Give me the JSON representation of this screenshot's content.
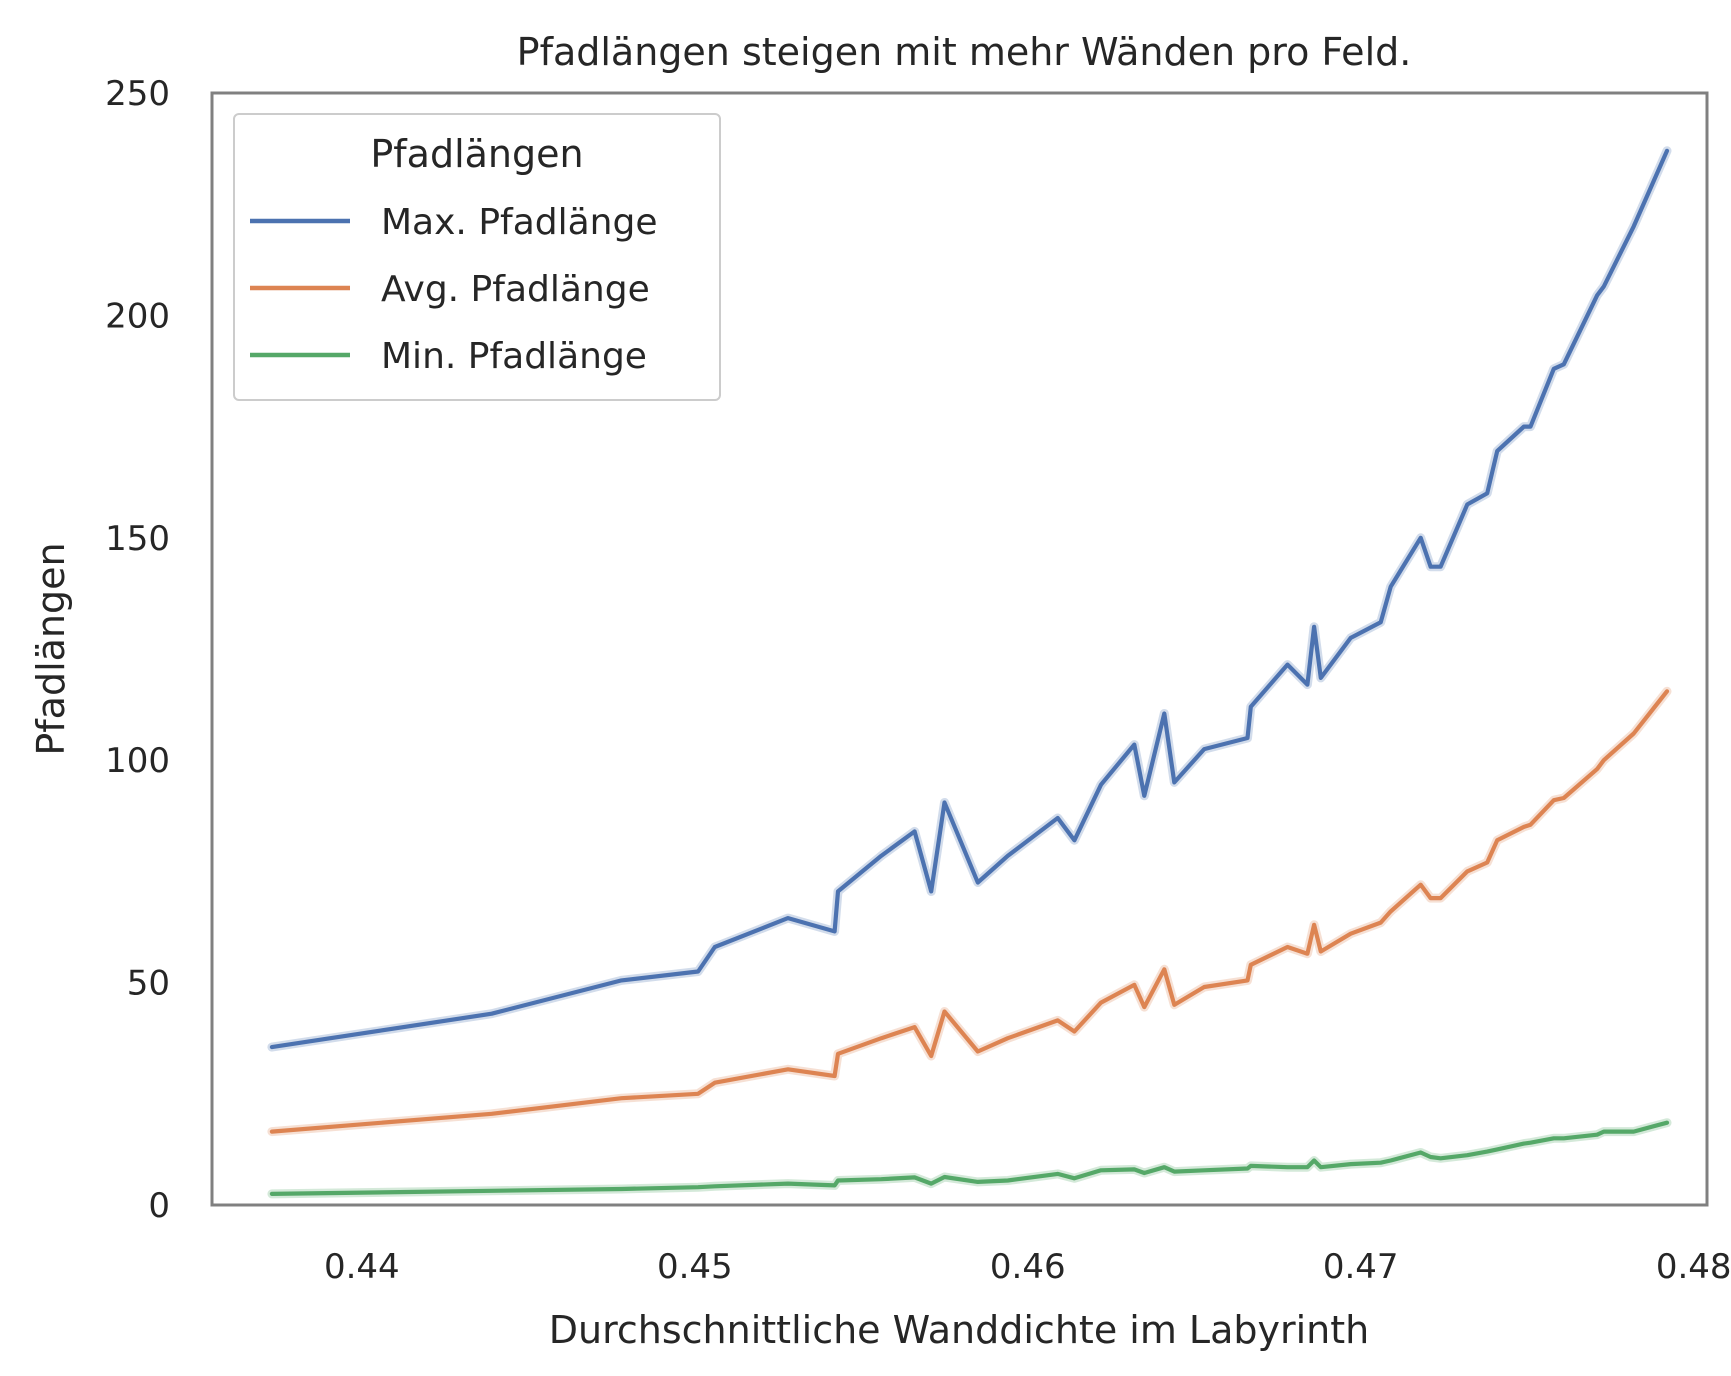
{
  "chart_data": {
    "type": "line",
    "title": "Pfadlängen steigen mit mehr Wänden pro Feld.",
    "xlabel": "Durchschnittliche Wanddichte im Labyrinth",
    "ylabel": "Pfadlängen",
    "xlim": [
      0.4355,
      0.4804
    ],
    "ylim": [
      0,
      250
    ],
    "xticks": [
      0.44,
      0.45,
      0.46,
      0.47,
      0.48
    ],
    "xtick_labels": [
      "0.44",
      "0.45",
      "0.46",
      "0.47",
      "0.48"
    ],
    "yticks": [
      0,
      50,
      100,
      150,
      200,
      250
    ],
    "ytick_labels": [
      "0",
      "50",
      "100",
      "150",
      "200",
      "250"
    ],
    "grid": false,
    "legend": {
      "title": "Pfadlängen",
      "placement": "top-left"
    },
    "x": [
      0.4373,
      0.4439,
      0.4478,
      0.4501,
      0.4506,
      0.4528,
      0.4542,
      0.4543,
      0.4556,
      0.4566,
      0.4571,
      0.4575,
      0.4585,
      0.4594,
      0.4609,
      0.4614,
      0.4622,
      0.4632,
      0.4635,
      0.4641,
      0.4644,
      0.4653,
      0.4666,
      0.4667,
      0.4678,
      0.4684,
      0.4686,
      0.4688,
      0.4697,
      0.4706,
      0.4709,
      0.4718,
      0.4721,
      0.4724,
      0.4732,
      0.4738,
      0.4741,
      0.4749,
      0.4751,
      0.4758,
      0.4761,
      0.4771,
      0.4773,
      0.4782,
      0.4792
    ],
    "series": [
      {
        "name": "Max. Pfadlänge",
        "color": "#4c72b0",
        "values": [
          35.5,
          43,
          50.5,
          52.5,
          58,
          64.5,
          61.5,
          70.5,
          78.5,
          84,
          70.5,
          90.5,
          72.5,
          78.5,
          87,
          82,
          94.5,
          103.5,
          92,
          110.5,
          95,
          102.5,
          105,
          112,
          121.5,
          117,
          130,
          118.5,
          127.5,
          131,
          139,
          150,
          143.5,
          143.5,
          157.5,
          160,
          169.5,
          175,
          175,
          188,
          189,
          204.5,
          206.5,
          220,
          237
        ]
      },
      {
        "name": "Avg. Pfadlänge",
        "color": "#dd8452",
        "values": [
          16.5,
          20.5,
          24,
          25,
          27.5,
          30.5,
          29,
          34,
          37.5,
          40,
          33.5,
          43.5,
          34.5,
          37.5,
          41.5,
          39,
          45.5,
          49.5,
          44.5,
          53,
          45,
          49,
          50.5,
          54,
          58,
          56.5,
          63,
          57,
          61,
          63.5,
          66,
          72,
          69,
          69,
          75,
          77,
          82,
          85,
          85.5,
          91,
          91.5,
          98,
          100,
          106,
          115.5
        ]
      },
      {
        "name": "Min. Pfadlänge",
        "color": "#55a868",
        "values": [
          2.5,
          3.2,
          3.6,
          4,
          4.2,
          4.8,
          4.4,
          5.5,
          5.8,
          6.2,
          4.8,
          6.3,
          5.2,
          5.5,
          7,
          6,
          7.8,
          8,
          7.2,
          8.5,
          7.5,
          7.8,
          8.2,
          8.8,
          8.5,
          8.5,
          10,
          8.5,
          9.2,
          9.5,
          10,
          11.8,
          10.8,
          10.5,
          11.2,
          12,
          12.5,
          13.8,
          14,
          15,
          15,
          15.8,
          16.5,
          16.5,
          18.5
        ]
      }
    ]
  }
}
